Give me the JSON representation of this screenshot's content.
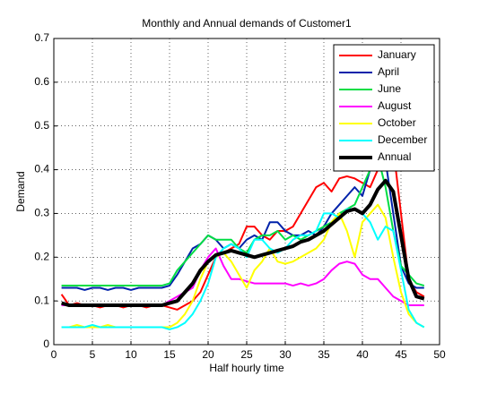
{
  "chart_data": {
    "type": "line",
    "title": "Monthly and Annual demands of Customer1",
    "xlabel": "Half hourly time",
    "ylabel": "Demand",
    "x": [
      1,
      2,
      3,
      4,
      5,
      6,
      7,
      8,
      9,
      10,
      11,
      12,
      13,
      14,
      15,
      16,
      17,
      18,
      19,
      20,
      21,
      22,
      23,
      24,
      25,
      26,
      27,
      28,
      29,
      30,
      31,
      32,
      33,
      34,
      35,
      36,
      37,
      38,
      39,
      40,
      41,
      42,
      43,
      44,
      45,
      46,
      47,
      48
    ],
    "series": [
      {
        "name": "January",
        "color": "#ff0000",
        "width": 2,
        "values": [
          0.115,
          0.09,
          0.095,
          0.09,
          0.09,
          0.085,
          0.09,
          0.09,
          0.085,
          0.09,
          0.09,
          0.085,
          0.09,
          0.09,
          0.085,
          0.08,
          0.09,
          0.1,
          0.12,
          0.16,
          0.2,
          0.21,
          0.22,
          0.23,
          0.27,
          0.27,
          0.25,
          0.24,
          0.26,
          0.26,
          0.27,
          0.3,
          0.33,
          0.36,
          0.37,
          0.35,
          0.38,
          0.385,
          0.38,
          0.37,
          0.36,
          0.4,
          0.48,
          0.45,
          0.3,
          0.15,
          0.12,
          0.11
        ]
      },
      {
        "name": "April",
        "color": "#0022aa",
        "width": 2,
        "values": [
          0.13,
          0.13,
          0.13,
          0.125,
          0.13,
          0.13,
          0.125,
          0.13,
          0.13,
          0.125,
          0.13,
          0.13,
          0.13,
          0.13,
          0.135,
          0.16,
          0.19,
          0.22,
          0.23,
          0.25,
          0.24,
          0.22,
          0.23,
          0.22,
          0.24,
          0.25,
          0.24,
          0.28,
          0.28,
          0.26,
          0.25,
          0.25,
          0.26,
          0.25,
          0.27,
          0.3,
          0.32,
          0.34,
          0.36,
          0.34,
          0.4,
          0.46,
          0.42,
          0.3,
          0.18,
          0.14,
          0.13,
          0.13
        ]
      },
      {
        "name": "June",
        "color": "#00dd44",
        "width": 2,
        "values": [
          0.135,
          0.135,
          0.135,
          0.135,
          0.135,
          0.135,
          0.135,
          0.135,
          0.135,
          0.135,
          0.135,
          0.135,
          0.135,
          0.135,
          0.14,
          0.17,
          0.19,
          0.21,
          0.23,
          0.25,
          0.24,
          0.24,
          0.24,
          0.22,
          0.21,
          0.24,
          0.25,
          0.25,
          0.26,
          0.24,
          0.25,
          0.24,
          0.25,
          0.26,
          0.27,
          0.28,
          0.3,
          0.31,
          0.32,
          0.36,
          0.4,
          0.43,
          0.36,
          0.26,
          0.18,
          0.16,
          0.14,
          0.135
        ]
      },
      {
        "name": "August",
        "color": "#ff00ff",
        "width": 2,
        "values": [
          0.09,
          0.09,
          0.09,
          0.09,
          0.09,
          0.09,
          0.09,
          0.09,
          0.09,
          0.09,
          0.09,
          0.09,
          0.09,
          0.09,
          0.1,
          0.11,
          0.12,
          0.13,
          0.17,
          0.2,
          0.22,
          0.18,
          0.15,
          0.15,
          0.145,
          0.14,
          0.14,
          0.14,
          0.14,
          0.14,
          0.135,
          0.14,
          0.135,
          0.14,
          0.15,
          0.17,
          0.185,
          0.19,
          0.185,
          0.16,
          0.15,
          0.15,
          0.13,
          0.11,
          0.1,
          0.09,
          0.09,
          0.09
        ]
      },
      {
        "name": "October",
        "color": "#ffff00",
        "width": 2,
        "values": [
          0.04,
          0.04,
          0.045,
          0.04,
          0.04,
          0.04,
          0.045,
          0.04,
          0.04,
          0.04,
          0.04,
          0.04,
          0.04,
          0.04,
          0.04,
          0.05,
          0.07,
          0.1,
          0.15,
          0.19,
          0.2,
          0.21,
          0.19,
          0.16,
          0.13,
          0.17,
          0.19,
          0.22,
          0.19,
          0.185,
          0.19,
          0.2,
          0.21,
          0.22,
          0.24,
          0.28,
          0.3,
          0.26,
          0.2,
          0.28,
          0.3,
          0.32,
          0.29,
          0.2,
          0.12,
          0.07,
          0.05,
          0.04
        ]
      },
      {
        "name": "December",
        "color": "#00ffff",
        "width": 2,
        "values": [
          0.04,
          0.04,
          0.04,
          0.04,
          0.045,
          0.04,
          0.04,
          0.04,
          0.04,
          0.04,
          0.04,
          0.04,
          0.04,
          0.04,
          0.035,
          0.04,
          0.05,
          0.07,
          0.1,
          0.14,
          0.2,
          0.22,
          0.23,
          0.22,
          0.2,
          0.24,
          0.24,
          0.22,
          0.21,
          0.22,
          0.24,
          0.25,
          0.25,
          0.26,
          0.3,
          0.3,
          0.29,
          0.31,
          0.31,
          0.3,
          0.28,
          0.24,
          0.27,
          0.26,
          0.17,
          0.08,
          0.05,
          0.04
        ]
      },
      {
        "name": "Annual",
        "color": "#000000",
        "width": 4,
        "values": [
          0.095,
          0.09,
          0.09,
          0.09,
          0.09,
          0.09,
          0.09,
          0.09,
          0.09,
          0.09,
          0.09,
          0.09,
          0.09,
          0.09,
          0.095,
          0.1,
          0.12,
          0.14,
          0.17,
          0.19,
          0.205,
          0.21,
          0.215,
          0.21,
          0.205,
          0.2,
          0.205,
          0.21,
          0.215,
          0.22,
          0.225,
          0.235,
          0.24,
          0.25,
          0.26,
          0.275,
          0.29,
          0.305,
          0.31,
          0.3,
          0.32,
          0.355,
          0.375,
          0.35,
          0.25,
          0.15,
          0.11,
          0.105
        ]
      }
    ],
    "xlim": [
      0,
      50
    ],
    "xticks": [
      0,
      5,
      10,
      15,
      20,
      25,
      30,
      35,
      40,
      45,
      50
    ],
    "ylim": [
      0,
      0.7
    ],
    "yticks": [
      0,
      0.1,
      0.2,
      0.3,
      0.4,
      0.5,
      0.6,
      0.7
    ],
    "grid": true,
    "legend": "upper right"
  }
}
